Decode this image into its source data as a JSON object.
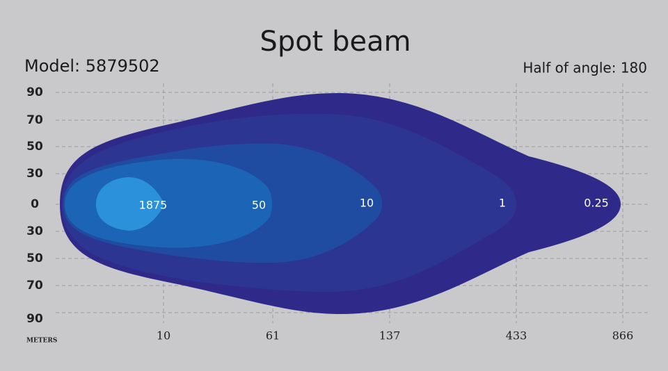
{
  "header": {
    "title": "Spot beam",
    "model": "Model: 5879502",
    "half_angle": "Half of  angle: 180"
  },
  "y_axis": {
    "labels": [
      90,
      70,
      50,
      30,
      0,
      30,
      50,
      70,
      90
    ]
  },
  "x_axis": {
    "unit": "Meters",
    "labels": [
      10,
      61,
      137,
      433,
      866
    ]
  },
  "contours": [
    {
      "label": 1875
    },
    {
      "label": 50
    },
    {
      "label": 10
    },
    {
      "label": 1
    },
    {
      "label": 0.25
    }
  ]
}
